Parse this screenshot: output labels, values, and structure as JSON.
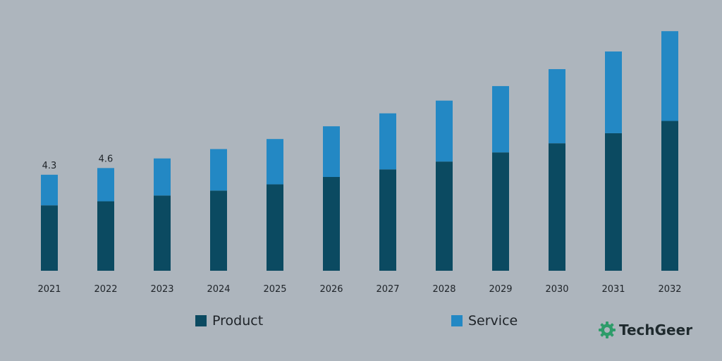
{
  "chart_data": {
    "type": "bar",
    "stacked": true,
    "title": "",
    "xlabel": "",
    "ylabel": "",
    "categories": [
      "2021",
      "2022",
      "2023",
      "2024",
      "2025",
      "2026",
      "2027",
      "2028",
      "2029",
      "2030",
      "2031",
      "2032"
    ],
    "series": [
      {
        "name": "Product",
        "color": "#0b4a61",
        "values": [
          2.93,
          3.11,
          3.37,
          3.59,
          3.87,
          4.2,
          4.54,
          4.89,
          5.3,
          5.71,
          6.16,
          6.71
        ]
      },
      {
        "name": "Service",
        "color": "#2388c4",
        "values": [
          1.37,
          1.49,
          1.66,
          1.86,
          2.03,
          2.27,
          2.51,
          2.73,
          2.97,
          3.32,
          3.66,
          4.02
        ]
      }
    ],
    "totals_labels": [
      "4.3",
      "4.6",
      "",
      "",
      "",
      "",
      "",
      "",
      "",
      "",
      "",
      ""
    ],
    "ylim": [
      0,
      10.8
    ],
    "grid": false,
    "legend_position": "bottom"
  },
  "brand": {
    "name": "TechGeer",
    "icon": "gear-icon",
    "icon_color": "#2e9c6a"
  }
}
